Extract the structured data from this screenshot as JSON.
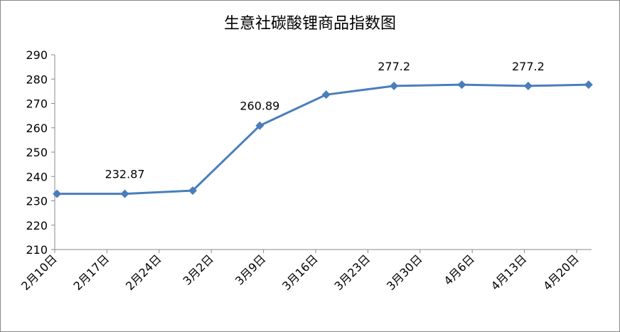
{
  "chart_data": {
    "type": "line",
    "title": "生意社碳酸锂商品指数图",
    "xlim": [
      0,
      72
    ],
    "xticks": [
      {
        "value": 0,
        "label": "2月10日"
      },
      {
        "value": 7,
        "label": "2月17日"
      },
      {
        "value": 14,
        "label": "2月24日"
      },
      {
        "value": 21,
        "label": "3月2日"
      },
      {
        "value": 28,
        "label": "3月9日"
      },
      {
        "value": 35,
        "label": "3月16日"
      },
      {
        "value": 42,
        "label": "3月23日"
      },
      {
        "value": 49,
        "label": "3月30日"
      },
      {
        "value": 56,
        "label": "4月6日"
      },
      {
        "value": 63,
        "label": "4月13日"
      },
      {
        "value": 70,
        "label": "4月20日"
      }
    ],
    "ylim": [
      210,
      290
    ],
    "yticks": [
      210,
      220,
      230,
      240,
      250,
      260,
      270,
      280,
      290
    ],
    "series": [
      {
        "color": "#4a7ebb",
        "x": [
          0.3,
          9.4,
          18.5,
          27.5,
          36.4,
          45.5,
          54.6,
          63.5,
          71.6
        ],
        "values": [
          232.9,
          232.87,
          234.2,
          260.89,
          273.6,
          277.2,
          277.7,
          277.2,
          277.7
        ],
        "value_labels": [
          null,
          "232.87",
          null,
          "260.89",
          null,
          "277.2",
          null,
          "277.2",
          null
        ]
      }
    ]
  }
}
